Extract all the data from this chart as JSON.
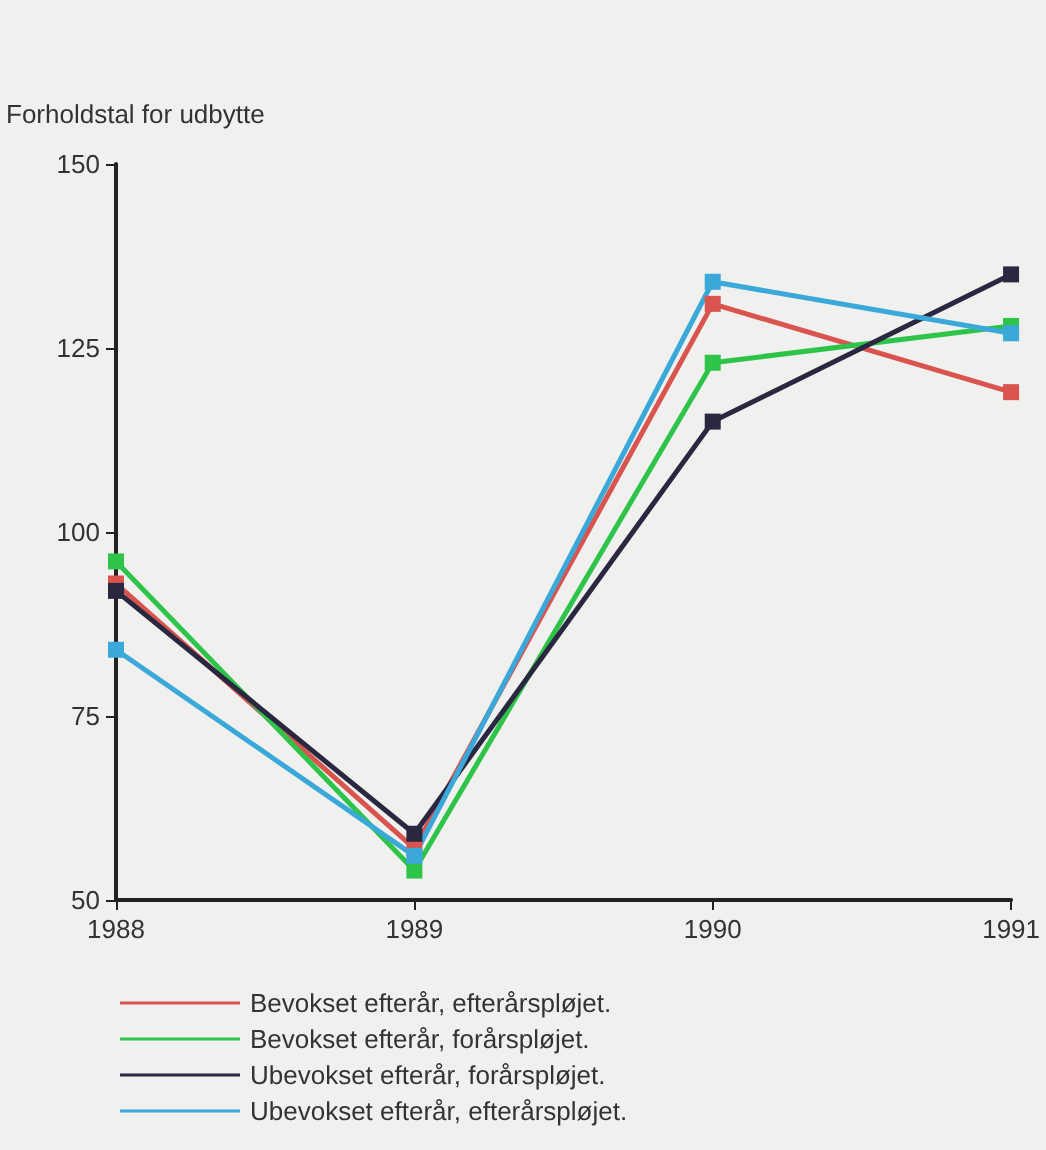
{
  "chart_data": {
    "type": "line",
    "ylabel": "Forholdstal for udbytte",
    "x": [
      1988,
      1989,
      1990,
      1991
    ],
    "xlim": [
      1988,
      1991
    ],
    "xticks": [
      1988,
      1989,
      1990,
      1991
    ],
    "ylim": [
      50,
      150
    ],
    "yticks": [
      50,
      75,
      100,
      125,
      150
    ],
    "grid": false,
    "legend": "bottom",
    "marker": "square",
    "line_style": "solid",
    "series": [
      {
        "name": "Bevokset efterår, efterårspløjet.",
        "color": "#d9534f",
        "values": [
          93,
          57,
          131,
          119
        ]
      },
      {
        "name": "Bevokset efterår, forårspløjet.",
        "color": "#2ec44a",
        "values": [
          96,
          54,
          123,
          128
        ]
      },
      {
        "name": "Ubevokset efterår, forårspløjet.",
        "color": "#2a2840",
        "values": [
          92,
          59,
          115,
          135
        ]
      },
      {
        "name": "Ubevokset efterår, efterårspløjet.",
        "color": "#3aa8d8",
        "values": [
          84,
          56,
          134,
          127
        ]
      }
    ]
  }
}
